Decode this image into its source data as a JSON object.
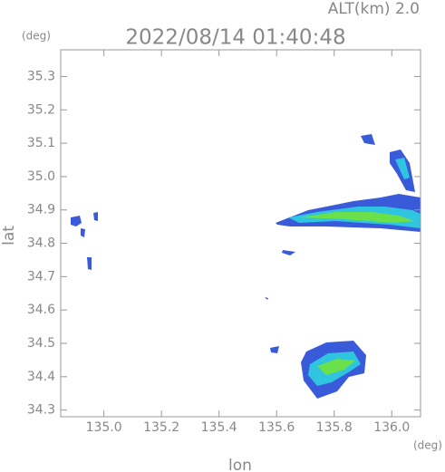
{
  "chart_data": {
    "type": "map",
    "title": "2022/08/14 01:40:48",
    "subtitle": "ALT(km) 2.0",
    "x_label": "lon",
    "y_label": "lat",
    "x_unit": "(deg)",
    "y_unit": "(deg)",
    "xlim": [
      134.85,
      136.1
    ],
    "ylim": [
      34.28,
      35.38
    ],
    "xticks": [
      {
        "value": 135,
        "label": "135.0"
      },
      135.2,
      135.4,
      135.6,
      135.8,
      {
        "value": 136,
        "label": "136.0"
      }
    ],
    "yticks": [
      34.3,
      34.4,
      34.5,
      34.6,
      34.7,
      34.8,
      34.9,
      {
        "value": 35,
        "label": "35.0"
      },
      35.1,
      35.2,
      35.3
    ]
  }
}
